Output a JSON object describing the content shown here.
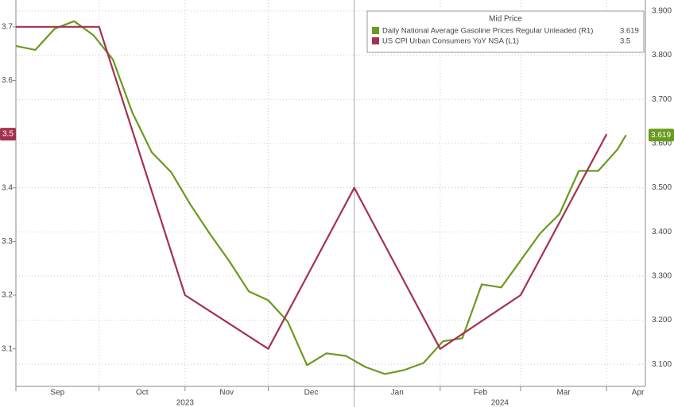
{
  "chart_data": {
    "type": "line",
    "legend_title": "Mid Price",
    "xlim": [
      "2023-09-01",
      "2024-04-15"
    ],
    "xticks": [
      {
        "value": "2023-09-01",
        "label": "Sep"
      },
      {
        "value": "2023-10-01",
        "label": "Oct"
      },
      {
        "value": "2023-11-01",
        "label": "Nov"
      },
      {
        "value": "2023-12-01",
        "label": "Dec"
      },
      {
        "value": "2024-01-01",
        "label": "Jan"
      },
      {
        "value": "2024-02-01",
        "label": "Feb"
      },
      {
        "value": "2024-03-01",
        "label": "Mar"
      },
      {
        "value": "2024-04-01",
        "label": "Apr"
      }
    ],
    "xticks2": [
      {
        "value": "2023-09-01",
        "label": "2023"
      },
      {
        "value": "2024-01-01",
        "label": "2024"
      }
    ],
    "ylim": [
      3.03,
      3.75
    ],
    "yticks": [
      3.1,
      3.2,
      3.3,
      3.4,
      3.5,
      3.6,
      3.7
    ],
    "y2lim": [
      3.05,
      3.925
    ],
    "y2ticks": [
      {
        "value": 3.1,
        "label": "3.100"
      },
      {
        "value": 3.2,
        "label": "3.200"
      },
      {
        "value": 3.3,
        "label": "3.300"
      },
      {
        "value": 3.4,
        "label": "3.400"
      },
      {
        "value": 3.5,
        "label": "3.500"
      },
      {
        "value": 3.6,
        "label": "3.600"
      },
      {
        "value": 3.7,
        "label": "3.700"
      },
      {
        "value": 3.8,
        "label": "3.800"
      },
      {
        "value": 3.9,
        "label": "3.900"
      }
    ],
    "grid": true,
    "legend": "upper right",
    "series": [
      {
        "name": "Daily National Average Gasoline Prices Regular Unleaded  (R1)",
        "color": "#6a9a1f",
        "axis": "y2",
        "x": [
          "2023-09-01",
          "2023-09-08",
          "2023-09-15",
          "2023-09-22",
          "2023-09-29",
          "2023-10-06",
          "2023-10-13",
          "2023-10-20",
          "2023-10-27",
          "2023-11-03",
          "2023-11-10",
          "2023-11-17",
          "2023-11-24",
          "2023-12-01",
          "2023-12-08",
          "2023-12-15",
          "2023-12-22",
          "2023-12-29",
          "2024-01-05",
          "2024-01-12",
          "2024-01-19",
          "2024-01-26",
          "2024-02-02",
          "2024-02-09",
          "2024-02-16",
          "2024-02-23",
          "2024-03-01",
          "2024-03-08",
          "2024-03-15",
          "2024-03-22",
          "2024-03-29",
          "2024-04-05",
          "2024-04-08"
        ],
        "values": [
          3.821,
          3.812,
          3.86,
          3.877,
          3.845,
          3.79,
          3.67,
          3.58,
          3.535,
          3.461,
          3.395,
          3.333,
          3.265,
          3.245,
          3.197,
          3.098,
          3.125,
          3.119,
          3.094,
          3.078,
          3.087,
          3.103,
          3.152,
          3.159,
          3.281,
          3.274,
          3.335,
          3.396,
          3.44,
          3.538,
          3.538,
          3.587,
          3.619
        ]
      },
      {
        "name": "US CPI Urban Consumers YoY NSA  (L1)",
        "color": "#a3324f",
        "axis": "y",
        "x": [
          "2023-09-01",
          "2023-10-01",
          "2023-11-01",
          "2023-12-01",
          "2024-01-01",
          "2024-02-01",
          "2024-03-01",
          "2024-04-01"
        ],
        "values": [
          3.7,
          3.7,
          3.2,
          3.1,
          3.4,
          3.1,
          3.2,
          3.5
        ]
      }
    ]
  }
}
